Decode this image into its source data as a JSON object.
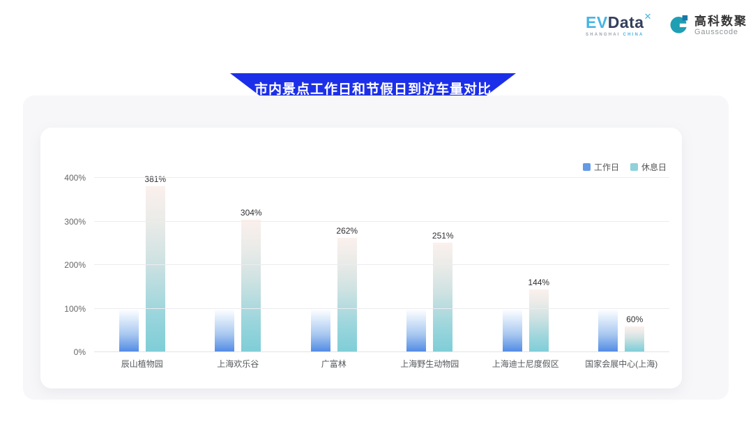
{
  "header": {
    "evdata_logo": {
      "ev": "EV",
      "data": "Data",
      "sup": "✕",
      "subtitle_left": "SHANGHAI",
      "subtitle_right": "CHINA"
    },
    "gausscode_logo": {
      "cn": "高科数聚",
      "en": "Gausscode",
      "icon_color": "#1f9eb4",
      "icon_accent": "#1878a6"
    }
  },
  "banner": {
    "title": "市内景点工作日和节假日到访车量对比",
    "color": "#1c2fe8"
  },
  "chart_data": {
    "type": "bar",
    "title": "市内景点工作日和节假日到访车量对比",
    "categories": [
      "辰山植物园",
      "上海欢乐谷",
      "广富林",
      "上海野生动物园",
      "上海迪士尼度假区",
      "国家会展中心(上海)"
    ],
    "series": [
      {
        "name": "工作日",
        "values": [
          100,
          100,
          100,
          100,
          100,
          100
        ],
        "color": "#649ae6",
        "show_value_labels": false
      },
      {
        "name": "休息日",
        "values": [
          381,
          304,
          262,
          251,
          144,
          60
        ],
        "color": "#8fd2db",
        "show_value_labels": true
      }
    ],
    "value_label_suffix": "%",
    "ylim": [
      0,
      400
    ],
    "ytick_step": 100,
    "ytick_labels": [
      "0%",
      "100%",
      "200%",
      "300%",
      "400%"
    ],
    "grid": true,
    "legend_position": "top-right"
  }
}
